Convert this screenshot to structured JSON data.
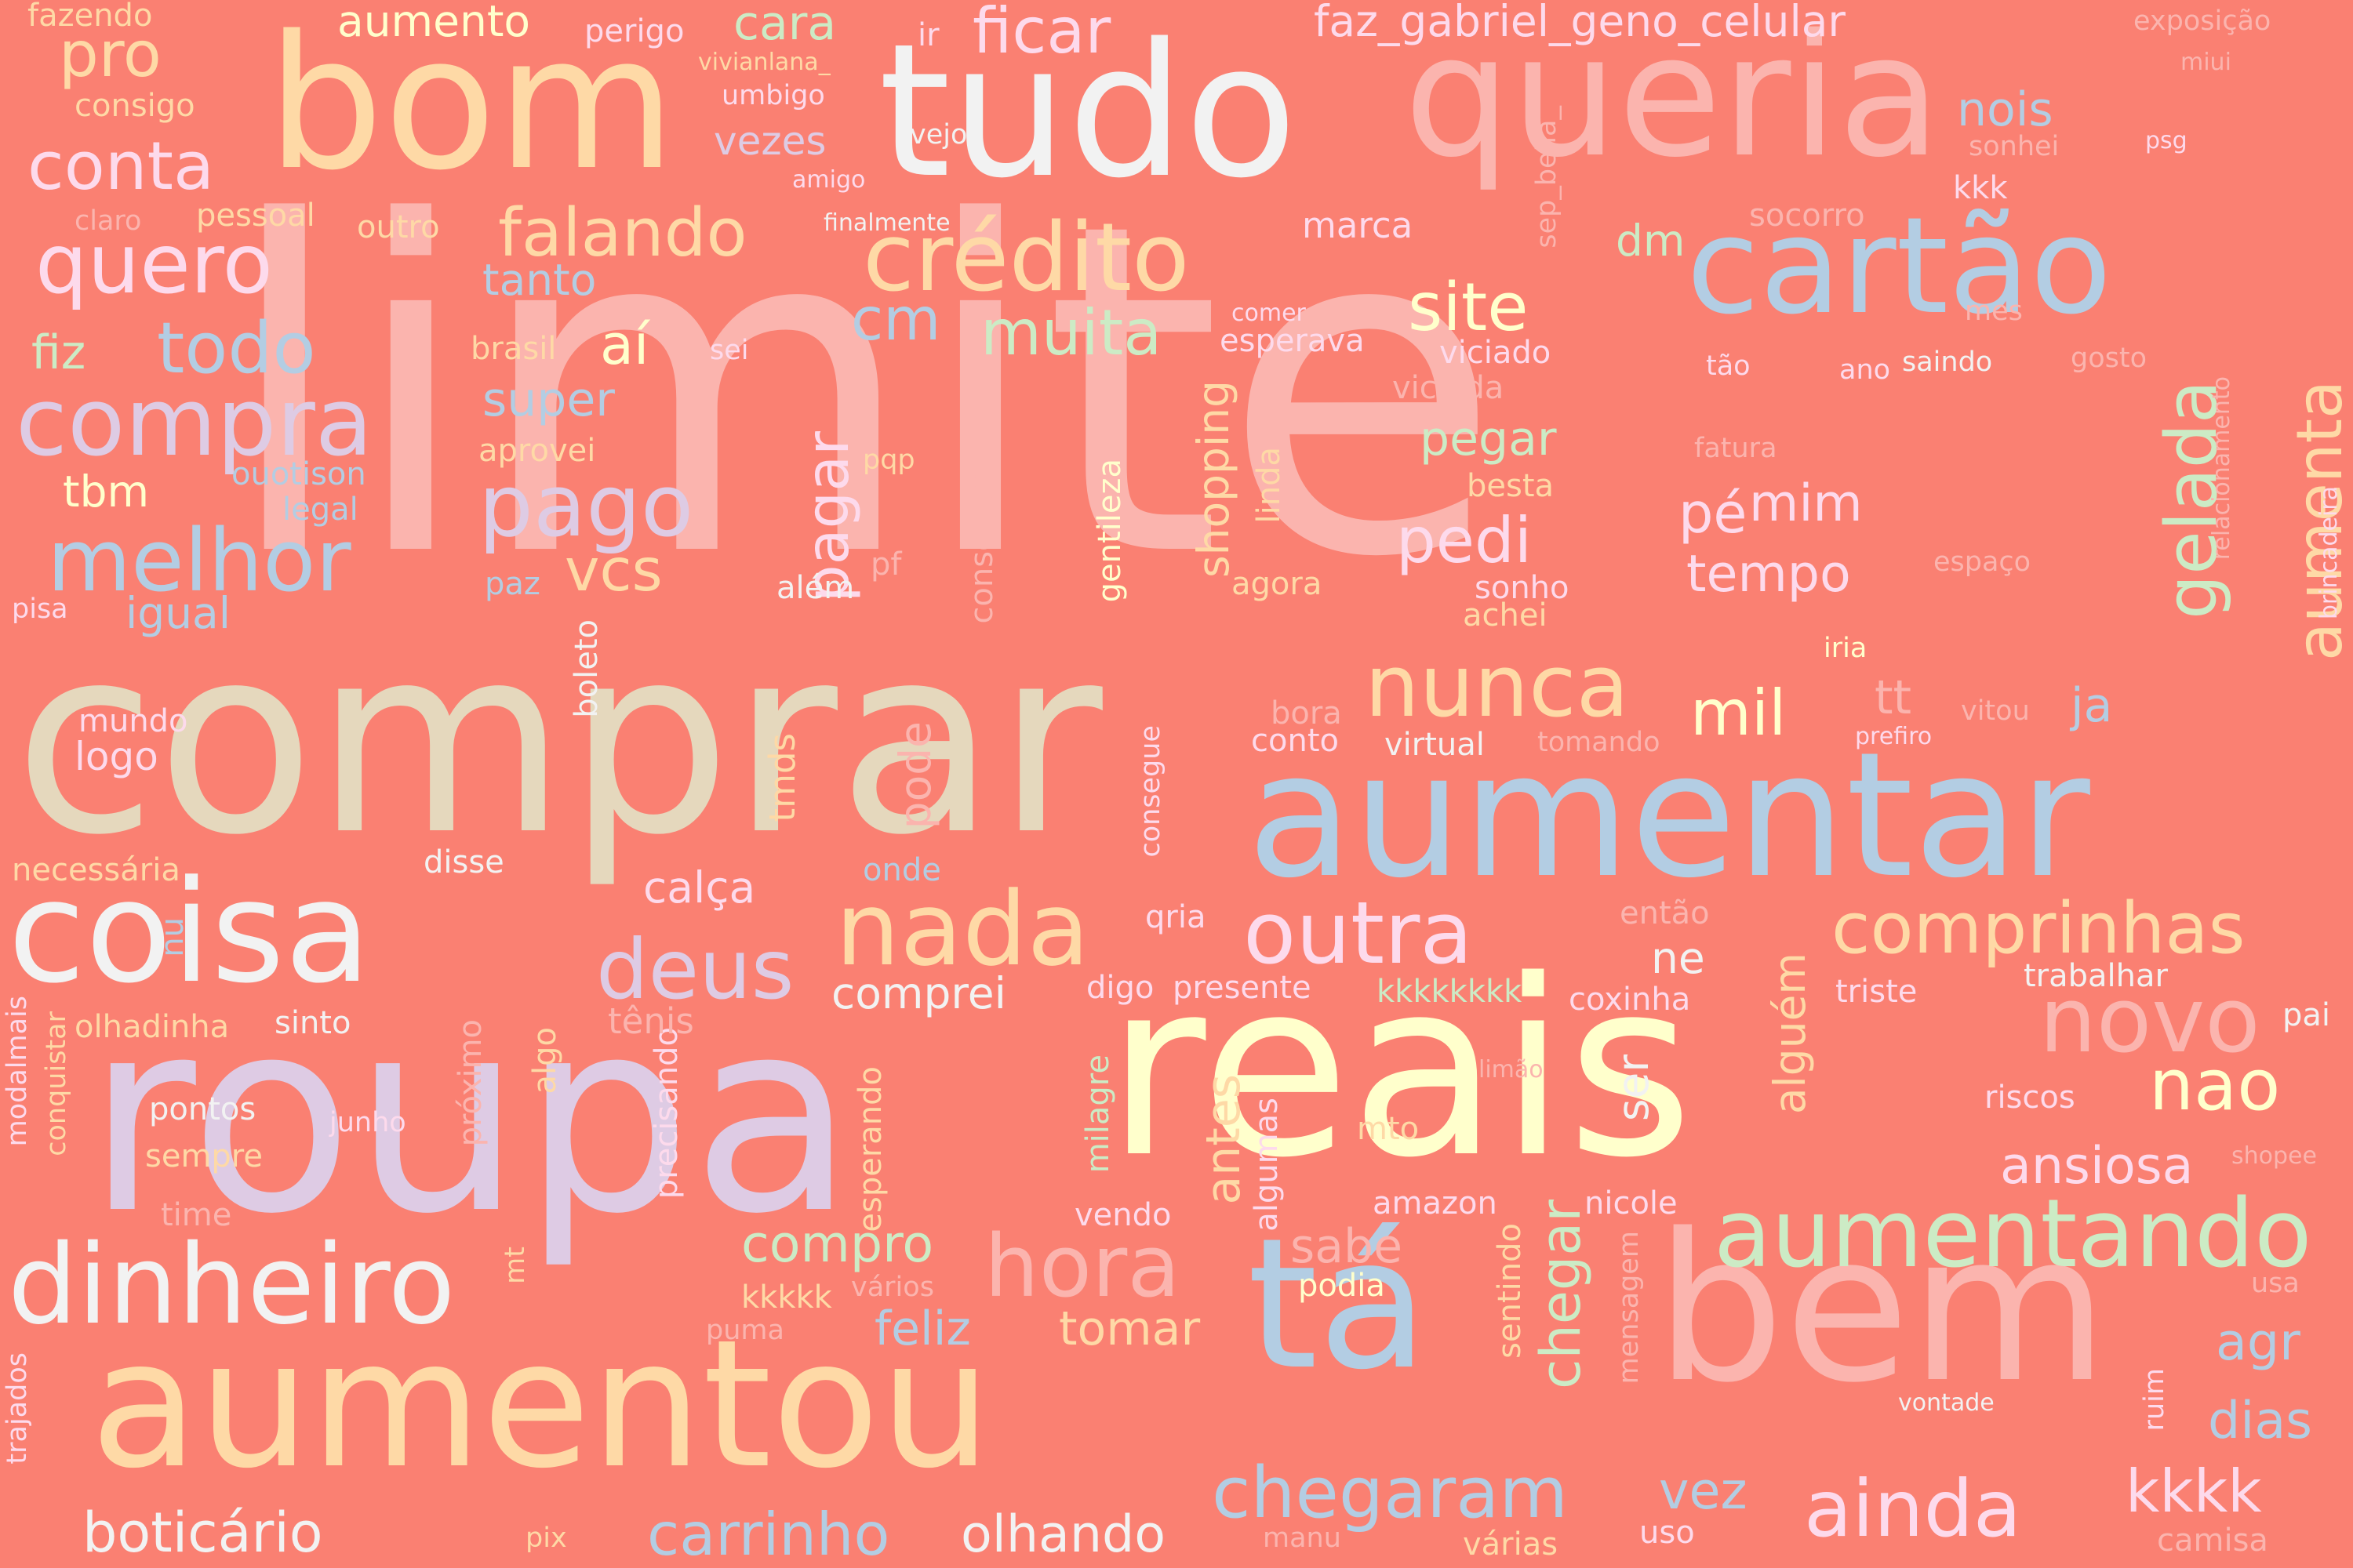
{
  "palette": {
    "background": "#fa8072",
    "pink": "#fbb4ae",
    "blue": "#b3cde3",
    "green": "#ccebc5",
    "lilac": "#decbe4",
    "orange": "#fed9a6",
    "yellow": "#ffffcc",
    "beige": "#e5d8bd",
    "rose": "#fddaec",
    "white": "#f2f2f2"
  },
  "words": [
    "limite",
    "comprar",
    "roupa",
    "reais",
    "aumentar",
    "tudo",
    "bom",
    "queria",
    "bem",
    "aumentou",
    "tá",
    "cartão",
    "coisa",
    "dinheiro",
    "crédito",
    "aumentando",
    "nada",
    "compra",
    "melhor",
    "quero",
    "pago",
    "outra",
    "deus",
    "hora",
    "novo",
    "nunca",
    "ainda",
    "comprinhas",
    "chegaram",
    "carrinho",
    "olhando",
    "boticário",
    "falando",
    "conta",
    "todo",
    "pro",
    "ficar",
    "gelada",
    "aumenta",
    "site",
    "muita",
    "pagar",
    "cm",
    "vcs",
    "pedi",
    "mil",
    "pé",
    "mim",
    "nao",
    "ansiosa",
    "kkkk",
    "dias",
    "agr",
    "vez",
    "tomar",
    "feliz",
    "compro",
    "sabe",
    "chegar",
    "alguém",
    "tempo",
    "faz_gabriel_geno_celular",
    "aumento",
    "cara",
    "nois",
    "dm",
    "tt",
    "ja",
    "super",
    "aí",
    "tbm",
    "fiz",
    "igual",
    "comprei",
    "calça",
    "ne",
    "pegar",
    "shopping",
    "tanto",
    "vezes",
    "marca",
    "sonhei",
    "socorro",
    "kkk",
    "exposição",
    "miui",
    "psg",
    "mes",
    "gosto",
    "ano",
    "saindo",
    "tão",
    "fatura",
    "espaço",
    "relacionamento",
    "brincadeira",
    "iria",
    "prefiro",
    "vitou",
    "tomando",
    "virtual",
    "conto",
    "bora",
    "achei",
    "sonho",
    "besta",
    "viciada",
    "viciado",
    "esperava",
    "comer",
    "agora",
    "linda",
    "gentileza",
    "conseguir",
    "consegue",
    "além",
    "pf",
    "pqp",
    "sei",
    "brasil",
    "aprovei",
    "ouotison",
    "legal",
    "paz",
    "pisa",
    "mundo",
    "logo",
    "boleto",
    "tmds",
    "pode",
    "onde",
    "disse",
    "necessária",
    "nu",
    "olhadinha",
    "sinto",
    "modalmais",
    "conquistar",
    "pontos",
    "sempre",
    "time",
    "junho",
    "próximo",
    "algo",
    "precisando",
    "tênis",
    "esperando",
    "milagre",
    "algumas",
    "antes",
    "mto",
    "amazon",
    "nicole",
    "sentindo",
    "mensagem",
    "podia",
    "vários",
    "kkkkk",
    "puma",
    "mt",
    "vendo",
    "presente",
    "digo",
    "qria",
    "kkkkkkkk",
    "coxinha",
    "triste",
    "trabalhar",
    "então",
    "limão",
    "ser",
    "riscos",
    "shopee",
    "usa",
    "pai",
    "vontade",
    "ruim",
    "camisa",
    "uso",
    "várias",
    "manu",
    "pix",
    "trajados",
    "fazendo",
    "perigo",
    "ir",
    "vivianlana_",
    "umbigo",
    "consigo",
    "vejo",
    "amigo",
    "claro",
    "pessoal",
    "outro",
    "finalmente",
    "sep_bella_",
    "sep_bella"
  ]
}
